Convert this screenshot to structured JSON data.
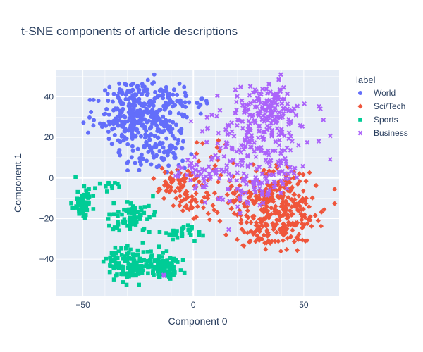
{
  "chart_data": {
    "type": "scatter",
    "title": "t-SNE components of article descriptions",
    "xlabel": "Component 0",
    "ylabel": "Component 1",
    "xlim": [
      -62,
      66
    ],
    "ylim": [
      -58,
      53
    ],
    "xticks": [
      -50,
      0,
      50
    ],
    "yticks": [
      -40,
      -20,
      0,
      20,
      40
    ],
    "grid": true,
    "legend": {
      "title": "label",
      "placement": "top-right"
    },
    "series": [
      {
        "name": "World",
        "color": "#636efa",
        "marker": "circle",
        "clusters": [
          {
            "cx": -25,
            "cy": 30,
            "sx": 9,
            "sy": 7,
            "n": 280
          },
          {
            "cx": -10,
            "cy": 40,
            "sx": 5,
            "sy": 4,
            "n": 40
          },
          {
            "cx": -20,
            "cy": 12,
            "sx": 8,
            "sy": 5,
            "n": 60
          },
          {
            "cx": -12,
            "cy": 20,
            "sx": 6,
            "sy": 5,
            "n": 40
          },
          {
            "cx": 5,
            "cy": 36,
            "sx": 2,
            "sy": 2,
            "n": 8
          },
          {
            "cx": -28,
            "cy": 43,
            "sx": 3,
            "sy": 2,
            "n": 20
          }
        ]
      },
      {
        "name": "Sci/Tech",
        "color": "#ef553b",
        "marker": "diamond",
        "clusters": [
          {
            "cx": 38,
            "cy": -12,
            "sx": 8,
            "sy": 9,
            "n": 230
          },
          {
            "cx": 34,
            "cy": -26,
            "sx": 7,
            "sy": 4,
            "n": 60
          },
          {
            "cx": -5,
            "cy": -5,
            "sx": 7,
            "sy": 5,
            "n": 70
          },
          {
            "cx": 0,
            "cy": -14,
            "sx": 4,
            "sy": 3,
            "n": 25
          },
          {
            "cx": 18,
            "cy": -10,
            "sx": 6,
            "sy": 6,
            "n": 40
          },
          {
            "cx": 50,
            "cy": -20,
            "sx": 4,
            "sy": 5,
            "n": 25
          },
          {
            "cx": 10,
            "cy": 10,
            "sx": 5,
            "sy": 6,
            "n": 15
          }
        ]
      },
      {
        "name": "Sports",
        "color": "#00cc96",
        "marker": "square",
        "clusters": [
          {
            "cx": -50,
            "cy": -12,
            "sx": 2.5,
            "sy": 4,
            "n": 60
          },
          {
            "cx": -28,
            "cy": -42,
            "sx": 5,
            "sy": 4,
            "n": 130
          },
          {
            "cx": -13,
            "cy": -44,
            "sx": 3.5,
            "sy": 3,
            "n": 90
          },
          {
            "cx": -28,
            "cy": -19,
            "sx": 7,
            "sy": 4,
            "n": 80
          },
          {
            "cx": -6,
            "cy": -27,
            "sx": 3.5,
            "sy": 2,
            "n": 30
          },
          {
            "cx": -37,
            "cy": -4,
            "sx": 2,
            "sy": 1.5,
            "n": 10
          }
        ]
      },
      {
        "name": "Business",
        "color": "#ab63fa",
        "marker": "x",
        "clusters": [
          {
            "cx": 30,
            "cy": 23,
            "sx": 11,
            "sy": 11,
            "n": 220
          },
          {
            "cx": 34,
            "cy": 36,
            "sx": 6,
            "sy": 5,
            "n": 60
          },
          {
            "cx": 5,
            "cy": 3,
            "sx": 6,
            "sy": 4,
            "n": 40
          },
          {
            "cx": 25,
            "cy": -5,
            "sx": 8,
            "sy": 6,
            "n": 50
          },
          {
            "cx": 38,
            "cy": 0,
            "sx": 4,
            "sy": 4,
            "n": 25
          },
          {
            "cx": -13,
            "cy": -49,
            "sx": 1,
            "sy": 1,
            "n": 2
          }
        ]
      }
    ]
  }
}
